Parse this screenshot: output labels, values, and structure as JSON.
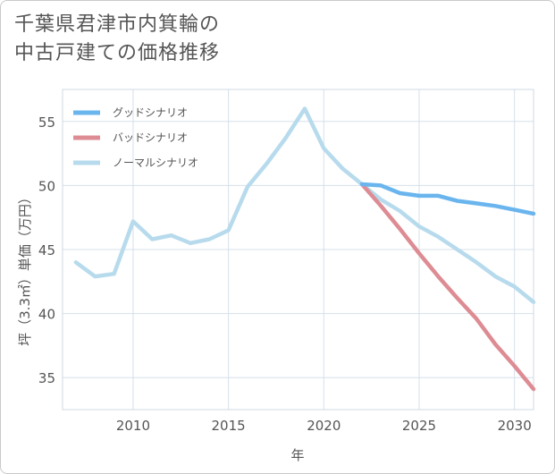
{
  "title_lines": [
    "千葉県君津市内箕輪の",
    "中古戸建ての価格推移"
  ],
  "chart_data": {
    "type": "line",
    "title": "千葉県君津市内箕輪の中古戸建ての価格推移",
    "xlabel": "年",
    "ylabel": "坪（3.3㎡）単価（万円）",
    "xlim": [
      2006.3,
      2031
    ],
    "ylim": [
      32.5,
      57.5
    ],
    "xticks": [
      2010,
      2015,
      2020,
      2025,
      2030
    ],
    "yticks": [
      35,
      40,
      45,
      50,
      55
    ],
    "grid": true,
    "legend_position": "top-left",
    "series": [
      {
        "name": "グッドシナリオ",
        "color": "#6ab5ee",
        "x": [
          2022,
          2023,
          2024,
          2025,
          2026,
          2027,
          2028,
          2029,
          2030,
          2031
        ],
        "values": [
          50.1,
          50.0,
          49.4,
          49.2,
          49.2,
          48.8,
          48.6,
          48.4,
          48.1,
          47.8
        ]
      },
      {
        "name": "バッドシナリオ",
        "color": "#de8c94",
        "x": [
          2022,
          2023,
          2024,
          2025,
          2026,
          2027,
          2028,
          2029,
          2030,
          2031
        ],
        "values": [
          50.1,
          48.4,
          46.6,
          44.7,
          42.9,
          41.2,
          39.6,
          37.6,
          35.9,
          34.1
        ]
      },
      {
        "name": "ノーマルシナリオ",
        "color": "#b7dbed",
        "x": [
          2007,
          2008,
          2009,
          2010,
          2011,
          2012,
          2013,
          2014,
          2015,
          2016,
          2017,
          2018,
          2019,
          2020,
          2021,
          2022,
          2023,
          2024,
          2025,
          2026,
          2027,
          2028,
          2029,
          2030,
          2031
        ],
        "values": [
          44.0,
          42.9,
          43.1,
          47.2,
          45.8,
          46.1,
          45.5,
          45.8,
          46.5,
          49.9,
          51.7,
          53.7,
          56.0,
          52.9,
          51.3,
          50.1,
          48.9,
          48.0,
          46.8,
          46.0,
          45.0,
          44.0,
          42.9,
          42.1,
          40.9
        ]
      }
    ]
  }
}
